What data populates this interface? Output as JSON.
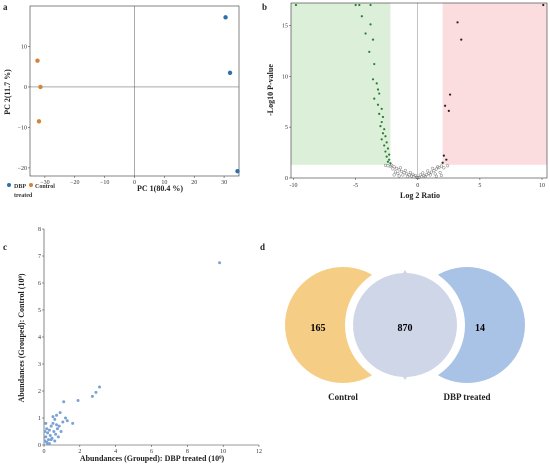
{
  "colors": {
    "dbp": "#2e6fad",
    "control": "#d2843a",
    "green_sig": "#2c7a35",
    "gray_pt": "#6f6f6f",
    "green_bg": "#dcefd9",
    "red_bg": "#fbdde0",
    "scatter_c": "#7aa3d4",
    "venn_control": "#f6cd84",
    "venn_overlap": "#cfd6e8",
    "venn_dbp": "#a9c3e6"
  },
  "panels": {
    "a": {
      "label": "a",
      "xlabel": "PC 1(80.4 %)",
      "ylabel": "PC 2(11.7 %)",
      "legend": [
        "DBP",
        "treated",
        "Control"
      ]
    },
    "b": {
      "label": "b",
      "xlabel": "Log 2 Ratio",
      "ylabel": "-Log10 P-value"
    },
    "c": {
      "label": "c",
      "xlabel": "Abundances (Grouped): DBP treated (10⁹)",
      "ylabel": "Abundances (Grouped): Control (10⁹)"
    },
    "d": {
      "label": "d"
    }
  },
  "chart_data": [
    {
      "type": "scatter",
      "xlim": [
        -35,
        35
      ],
      "ylim": [
        -22,
        20
      ],
      "x_ticks": [
        "−30",
        "−20",
        "−10",
        "0",
        "10",
        "20",
        "30"
      ],
      "y_ticks": [
        "10",
        "0",
        "−10",
        "−20"
      ],
      "series": [
        {
          "name": "DBP treated",
          "points": [
            [
              30.5,
              17.2
            ],
            [
              32.0,
              3.5
            ],
            [
              34.5,
              -20.8
            ]
          ]
        },
        {
          "name": "Control",
          "points": [
            [
              -32.5,
              6.5
            ],
            [
              -31.5,
              0.0
            ],
            [
              -32.0,
              -8.5
            ]
          ]
        }
      ]
    },
    {
      "type": "scatter",
      "xlim": [
        -10.2,
        10.4
      ],
      "ylim": [
        0,
        17.2
      ],
      "x_ticks": [
        "-10",
        "-5",
        "0",
        "5",
        "10"
      ],
      "y_ticks": [
        "0",
        "5",
        "10",
        "15"
      ],
      "down_region_x": [
        -10.2,
        -2.2
      ],
      "up_region_x": [
        2.0,
        10.4
      ],
      "sig_threshold_y": 1.3,
      "points_down_sig": [
        [
          -9.8,
          17
        ],
        [
          -5.0,
          17
        ],
        [
          -4.7,
          17
        ],
        [
          -3.8,
          17
        ],
        [
          -4.5,
          15.9
        ],
        [
          -3.8,
          15.1
        ],
        [
          -4.2,
          14.2
        ],
        [
          -3.6,
          13.6
        ],
        [
          -3.9,
          12.4
        ],
        [
          -3.5,
          11.2
        ],
        [
          -3.6,
          9.7
        ],
        [
          -3.3,
          9.3
        ],
        [
          -3.2,
          8.7
        ],
        [
          -3.1,
          8.3
        ],
        [
          -3.5,
          7.8
        ],
        [
          -3.2,
          7.2
        ],
        [
          -2.9,
          6.8
        ],
        [
          -3.1,
          6.3
        ],
        [
          -2.8,
          6.0
        ],
        [
          -2.9,
          5.5
        ],
        [
          -3.0,
          5.1
        ],
        [
          -2.7,
          4.8
        ],
        [
          -2.8,
          4.4
        ],
        [
          -2.6,
          4.1
        ],
        [
          -2.9,
          3.8
        ],
        [
          -2.5,
          3.5
        ],
        [
          -2.7,
          3.2
        ],
        [
          -2.4,
          2.9
        ],
        [
          -2.6,
          2.6
        ],
        [
          -2.3,
          2.3
        ],
        [
          -2.5,
          2.1
        ],
        [
          -2.3,
          1.8
        ],
        [
          -2.4,
          1.6
        ],
        [
          -2.2,
          1.45
        ]
      ],
      "points_up_sig": [
        [
          10.1,
          17
        ],
        [
          3.2,
          15.3
        ],
        [
          3.5,
          13.6
        ],
        [
          2.6,
          8.2
        ],
        [
          2.2,
          7.1
        ],
        [
          2.5,
          6.6
        ],
        [
          2.1,
          2.2
        ],
        [
          2.3,
          1.8
        ],
        [
          2.0,
          1.5
        ]
      ],
      "points_ns": [
        [
          -2.1,
          1.25
        ],
        [
          -1.9,
          1.1
        ],
        [
          -1.7,
          0.95
        ],
        [
          -1.5,
          0.8
        ],
        [
          -1.3,
          0.65
        ],
        [
          -1.1,
          0.52
        ],
        [
          -0.9,
          0.42
        ],
        [
          -0.7,
          0.3
        ],
        [
          -0.5,
          0.2
        ],
        [
          -0.3,
          0.12
        ],
        [
          -0.1,
          0.05
        ],
        [
          0.0,
          0.02
        ],
        [
          0.1,
          0.05
        ],
        [
          0.3,
          0.12
        ],
        [
          0.5,
          0.22
        ],
        [
          0.7,
          0.32
        ],
        [
          0.9,
          0.45
        ],
        [
          1.1,
          0.58
        ],
        [
          1.3,
          0.72
        ],
        [
          1.5,
          0.88
        ],
        [
          1.7,
          1.02
        ],
        [
          1.9,
          1.18
        ],
        [
          -2.0,
          0.9
        ],
        [
          -1.8,
          0.6
        ],
        [
          -1.6,
          0.45
        ],
        [
          -1.4,
          1.0
        ],
        [
          -1.2,
          0.3
        ],
        [
          -1.0,
          0.75
        ],
        [
          -0.8,
          0.15
        ],
        [
          -0.6,
          0.55
        ],
        [
          -0.4,
          0.35
        ],
        [
          -0.2,
          0.25
        ],
        [
          0.2,
          0.3
        ],
        [
          0.4,
          0.5
        ],
        [
          0.6,
          0.15
        ],
        [
          0.8,
          0.7
        ],
        [
          1.0,
          0.3
        ],
        [
          1.2,
          0.95
        ],
        [
          1.4,
          0.4
        ],
        [
          1.6,
          1.1
        ],
        [
          1.8,
          0.55
        ],
        [
          -2.2,
          1.15
        ],
        [
          -2.4,
          1.2
        ],
        [
          -1.9,
          0.3
        ],
        [
          1.9,
          0.25
        ],
        [
          -1.5,
          0.2
        ],
        [
          1.5,
          0.18
        ],
        [
          -2.6,
          1.25
        ],
        [
          2.1,
          1.0
        ],
        [
          2.4,
          1.2
        ]
      ]
    },
    {
      "type": "scatter",
      "xlim": [
        0,
        12
      ],
      "ylim": [
        0,
        8
      ],
      "x_ticks": [
        "0",
        "2",
        "4",
        "6",
        "8",
        "10",
        "12"
      ],
      "y_ticks": [
        "0",
        "1",
        "2",
        "3",
        "4",
        "5",
        "6",
        "7",
        "8"
      ],
      "points": [
        [
          9.8,
          6.75
        ],
        [
          3.1,
          2.15
        ],
        [
          2.9,
          1.95
        ],
        [
          2.7,
          1.8
        ],
        [
          1.1,
          1.6
        ],
        [
          1.9,
          1.65
        ],
        [
          0.9,
          1.2
        ],
        [
          0.7,
          1.1
        ],
        [
          0.6,
          0.95
        ],
        [
          1.6,
          0.8
        ],
        [
          0.5,
          0.8
        ],
        [
          0.4,
          0.7
        ],
        [
          0.3,
          0.55
        ],
        [
          0.2,
          0.45
        ],
        [
          0.1,
          0.3
        ],
        [
          0.05,
          0.15
        ],
        [
          0.15,
          0.1
        ],
        [
          0.25,
          0.2
        ],
        [
          0.35,
          0.35
        ],
        [
          0.45,
          0.25
        ],
        [
          0.55,
          0.5
        ],
        [
          0.65,
          0.4
        ],
        [
          0.75,
          0.6
        ],
        [
          0.85,
          0.7
        ],
        [
          0.95,
          0.5
        ],
        [
          1.05,
          0.85
        ],
        [
          0.3,
          0.05
        ],
        [
          0.6,
          0.15
        ],
        [
          0.8,
          0.3
        ],
        [
          1.2,
          1.0
        ],
        [
          0.05,
          0.5
        ],
        [
          0.1,
          0.8
        ],
        [
          0.15,
          0.6
        ],
        [
          0.4,
          0.2
        ],
        [
          0.2,
          0.05
        ],
        [
          1.3,
          0.9
        ],
        [
          0.5,
          1.05
        ],
        [
          0.7,
          0.75
        ]
      ]
    },
    {
      "type": "venn",
      "sets": [
        {
          "name": "Control",
          "only": 165
        },
        {
          "name": "DBP treated",
          "only": 14
        }
      ],
      "overlap": 870
    }
  ]
}
